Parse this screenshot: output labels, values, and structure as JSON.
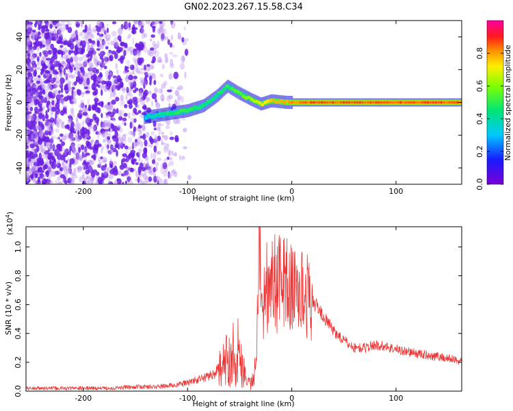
{
  "title": "GN02.2023.267.15.58.C34",
  "chart_data": [
    {
      "type": "heatmap",
      "xlabel": "Height of straight line (km)",
      "ylabel": "Frequency (Hz)",
      "xlim": [
        -255,
        163
      ],
      "ylim": [
        -50,
        50
      ],
      "xticks": [
        -200,
        -100,
        0,
        100
      ],
      "yticks": [
        -40,
        -20,
        0,
        20,
        40
      ],
      "xtick_labels": [
        "-200",
        "-100",
        "0",
        "100"
      ],
      "ytick_labels": [
        "-40",
        "-20",
        "0",
        "20",
        "40"
      ],
      "colorbar": {
        "label": "Normalized spectral amplitude",
        "range": [
          0,
          1
        ],
        "ticks": [
          0.0,
          0.2,
          0.4,
          0.6,
          0.8
        ],
        "tick_labels": [
          "0.0",
          "0.2",
          "0.4",
          "0.6",
          "0.8"
        ],
        "colormap": "rainbow (purple→blue→cyan→green→yellow→orange→red→magenta)"
      },
      "ridge": {
        "description": "strongest amplitude track",
        "points": [
          {
            "x": -140,
            "y": -9,
            "amp": 0.35
          },
          {
            "x": -120,
            "y": -7,
            "amp": 0.45
          },
          {
            "x": -100,
            "y": -5,
            "amp": 0.5
          },
          {
            "x": -85,
            "y": -2,
            "amp": 0.45
          },
          {
            "x": -72,
            "y": 4,
            "amp": 0.45
          },
          {
            "x": -62,
            "y": 10,
            "amp": 0.5
          },
          {
            "x": -52,
            "y": 6,
            "amp": 0.55
          },
          {
            "x": -40,
            "y": 2,
            "amp": 0.6
          },
          {
            "x": -30,
            "y": -1,
            "amp": 0.7
          },
          {
            "x": -20,
            "y": 1,
            "amp": 0.75
          },
          {
            "x": -5,
            "y": 0,
            "amp": 0.8
          },
          {
            "x": 20,
            "y": 0,
            "amp": 0.85
          },
          {
            "x": 60,
            "y": 0,
            "amp": 0.85
          },
          {
            "x": 100,
            "y": 0,
            "amp": 0.85
          },
          {
            "x": 160,
            "y": 0,
            "amp": 0.85
          }
        ]
      }
    },
    {
      "type": "line",
      "xlabel": "Height of straight line (km)",
      "ylabel": "SNR (10 * v/v)",
      "y_exponent_label": "(x10",
      "y_exponent": "4",
      "y_exponent_close": ")",
      "xlim": [
        -255,
        163
      ],
      "ylim": [
        0,
        1.14
      ],
      "xticks": [
        -200,
        -100,
        0,
        100
      ],
      "yticks": [
        0.0,
        0.2,
        0.4,
        0.6,
        0.8,
        1.0
      ],
      "xtick_labels": [
        "-200",
        "-100",
        "0",
        "100"
      ],
      "ytick_labels": [
        "0.0",
        "0.2",
        "0.4",
        "0.6",
        "0.8",
        "1.0"
      ],
      "color": "#ee3333",
      "series": [
        {
          "x": [
            -255,
            -230,
            -200,
            -175,
            -150,
            -130,
            -115,
            -105,
            -95,
            -85,
            -75,
            -65,
            -60,
            -57,
            -55,
            -52,
            -48,
            -45,
            -40,
            -37,
            -35,
            -33,
            -32,
            -30,
            -28,
            -25,
            -22,
            -18,
            -15,
            -10,
            -5,
            0,
            5,
            10,
            15,
            20,
            25,
            30,
            40,
            50,
            60,
            70,
            80,
            90,
            100,
            120,
            140,
            163
          ],
          "y": [
            0.02,
            0.02,
            0.02,
            0.02,
            0.03,
            0.03,
            0.04,
            0.05,
            0.07,
            0.09,
            0.12,
            0.18,
            0.25,
            0.3,
            0.22,
            0.28,
            0.2,
            0.12,
            0.05,
            0.07,
            0.15,
            0.5,
            0.6,
            0.75,
            0.45,
            0.8,
            0.65,
            0.85,
            0.7,
            0.8,
            0.75,
            0.7,
            0.72,
            0.68,
            0.66,
            0.62,
            0.58,
            0.52,
            0.42,
            0.35,
            0.3,
            0.3,
            0.32,
            0.31,
            0.29,
            0.26,
            0.24,
            0.21
          ]
        }
      ]
    }
  ]
}
